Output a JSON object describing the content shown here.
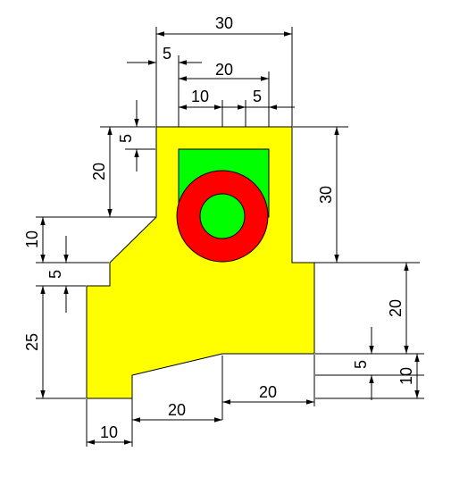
{
  "colors": {
    "part_fill": "#ffff00",
    "pocket_fill": "#00ff00",
    "ring_fill": "#ff0000",
    "hole_fill": "#00ff00",
    "outline": "#000000",
    "background": "#ffffff"
  },
  "dimensions": {
    "top_width": "30",
    "left_offset": "5",
    "pocket_width": "20",
    "hole_offset": "10",
    "pocket_right": "5",
    "pocket_top": "5",
    "left_upper_height": "20",
    "right_upper_height": "30",
    "chamfer_drop": "10",
    "step_height": "5",
    "left_lower_height": "25",
    "right_lower_height": "20",
    "right_step": "5",
    "right_bottom": "10",
    "bottom_right_width": "20",
    "bottom_mid_width": "20",
    "bottom_left_width": "10"
  }
}
